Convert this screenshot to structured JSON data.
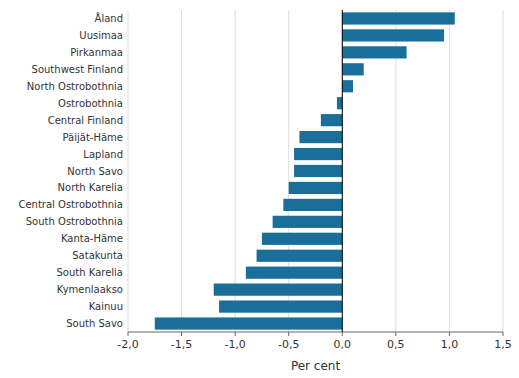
{
  "chart_data": {
    "type": "bar",
    "orientation": "horizontal",
    "xlabel": "Per cent",
    "categories": [
      "South Savo",
      "Kainuu",
      "Kymenlaakso",
      "South Karelia",
      "Satakunta",
      "Kanta-Häme",
      "South Ostrobothnia",
      "Central Ostrobothnia",
      "North Karelia",
      "North Savo",
      "Lapland",
      "Päijät-Häme",
      "Central Finland",
      "Ostrobothnia",
      "North Ostrobothnia",
      "Southwest Finland",
      "Pirkanmaa",
      "Uusimaa",
      "Åland"
    ],
    "values": [
      -1.75,
      -1.15,
      -1.2,
      -0.9,
      -0.8,
      -0.75,
      -0.65,
      -0.55,
      -0.5,
      -0.45,
      -0.45,
      -0.4,
      -0.2,
      -0.05,
      0.1,
      0.2,
      0.6,
      0.95,
      1.05
    ],
    "color": "#1a6f9a",
    "xlim": [
      -2.0,
      1.5
    ],
    "xticks": [
      {
        "value": -2.0,
        "label": "-2,0"
      },
      {
        "value": -1.5,
        "label": "-1,5"
      },
      {
        "value": -1.0,
        "label": "-1,0"
      },
      {
        "value": -0.5,
        "label": "-0,5"
      },
      {
        "value": 0.0,
        "label": "0,0"
      },
      {
        "value": 0.5,
        "label": "0,5"
      },
      {
        "value": 1.0,
        "label": "1,0"
      },
      {
        "value": 1.5,
        "label": "1,5"
      }
    ],
    "grid": true
  }
}
